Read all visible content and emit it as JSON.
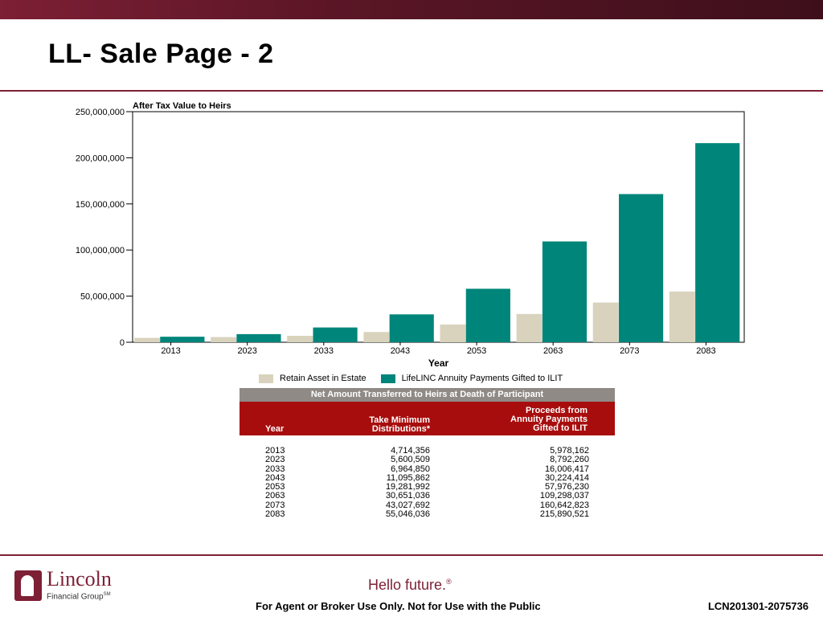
{
  "page": {
    "title": "LL- Sale Page - 2",
    "accent_color": "#7d1f35"
  },
  "chart_data": {
    "type": "bar",
    "title": "After Tax Value to Heirs",
    "xlabel": "Year",
    "ylabel": "",
    "ylim": [
      0,
      250000000
    ],
    "yticks": [
      "0",
      "50,000,000",
      "100,000,000",
      "150,000,000",
      "200,000,000",
      "250,000,000"
    ],
    "categories": [
      "2013",
      "2023",
      "2033",
      "2043",
      "2053",
      "2063",
      "2073",
      "2083"
    ],
    "series": [
      {
        "name": "Retain Asset in Estate",
        "color": "#d9d3bd",
        "values": [
          4714356,
          5600509,
          6964850,
          11095862,
          19281992,
          30651036,
          43027692,
          55046036
        ]
      },
      {
        "name": "LifeLINC Annuity Payments Gifted to ILIT",
        "color": "#00857a",
        "values": [
          5978162,
          8792260,
          16006417,
          30224414,
          57976230,
          109298037,
          160642823,
          215890521
        ]
      }
    ],
    "legend_position": "bottom"
  },
  "table": {
    "title": "Net Amount Transferred to Heirs at Death of Participant",
    "col_year": "Year",
    "col_tmd_1": "Take Minimum",
    "col_tmd_2": "Distributions*",
    "col_proc_1": "Proceeds from",
    "col_proc_2": "Annuity Payments",
    "col_proc_3": "Gifted to ILIT",
    "rows": [
      {
        "year": "2013",
        "tmd": "4,714,356",
        "proc": "5,978,162"
      },
      {
        "year": "2023",
        "tmd": "5,600,509",
        "proc": "8,792,260"
      },
      {
        "year": "2033",
        "tmd": "6,964,850",
        "proc": "16,006,417"
      },
      {
        "year": "2043",
        "tmd": "11,095,862",
        "proc": "30,224,414"
      },
      {
        "year": "2053",
        "tmd": "19,281,992",
        "proc": "57,976,230"
      },
      {
        "year": "2063",
        "tmd": "30,651,036",
        "proc": "109,298,037"
      },
      {
        "year": "2073",
        "tmd": "43,027,692",
        "proc": "160,642,823"
      },
      {
        "year": "2083",
        "tmd": "55,046,036",
        "proc": "215,890,521"
      }
    ]
  },
  "footer": {
    "logo_name": "Lincoln",
    "logo_sub": "Financial Group",
    "logo_sub_mark": "SM",
    "hello": "Hello future.",
    "hello_mark": "®",
    "disclaimer": "For Agent or Broker Use Only. Not for Use with the Public",
    "code": "LCN201301-2075736"
  }
}
